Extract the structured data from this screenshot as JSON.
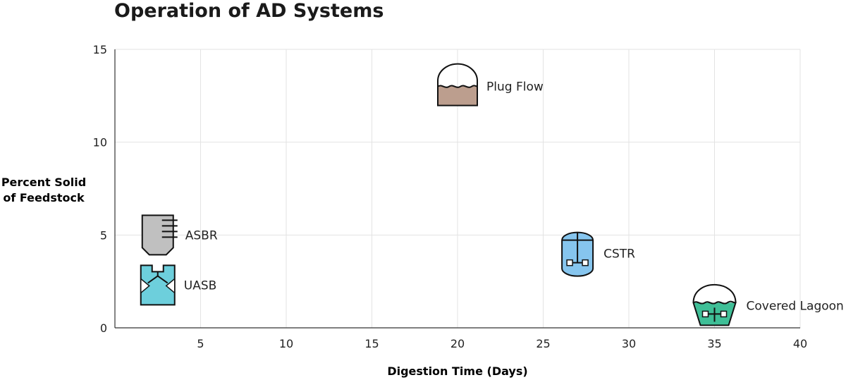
{
  "chart_data": {
    "type": "scatter",
    "title": "Operation of AD Systems",
    "xlabel": "Digestion Time (Days)",
    "ylabel": [
      "Percent Solid",
      "of Feedstock"
    ],
    "xlim": [
      0,
      40
    ],
    "ylim": [
      0,
      15
    ],
    "xticks": [
      5,
      10,
      15,
      20,
      25,
      30,
      35,
      40
    ],
    "yticks": [
      0,
      5,
      10,
      15
    ],
    "grid": true,
    "points": [
      {
        "label": "Plug Flow",
        "x": 20,
        "y": 13,
        "icon": "plug-flow-icon",
        "color": "#bc9e8e"
      },
      {
        "label": "ASBR",
        "x": 2.5,
        "y": 5,
        "icon": "asbr-icon",
        "color": "#c0c0c0"
      },
      {
        "label": "UASB",
        "x": 2.5,
        "y": 2.3,
        "icon": "uasb-icon",
        "color": "#6dcfdc"
      },
      {
        "label": "CSTR",
        "x": 27,
        "y": 4,
        "icon": "cstr-icon",
        "color": "#86c5ee"
      },
      {
        "label": "Covered Lagoon",
        "x": 35,
        "y": 1.2,
        "icon": "covered-lagoon-icon",
        "color": "#3fbf97"
      }
    ]
  }
}
